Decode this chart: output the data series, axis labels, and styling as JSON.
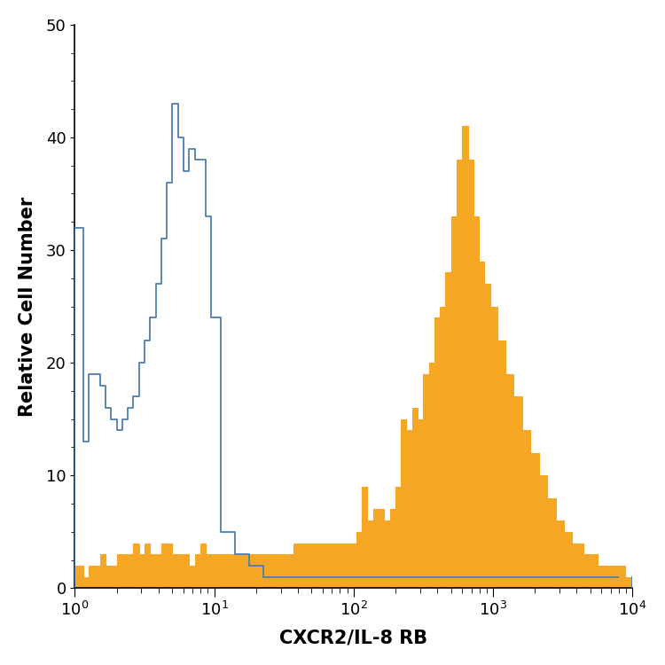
{
  "xlabel": "CXCR2/IL-8 RB",
  "ylabel": "Relative Cell Number",
  "xlim_log": [
    1,
    10000
  ],
  "ylim": [
    0,
    50
  ],
  "yticks": [
    0,
    10,
    20,
    30,
    40,
    50
  ],
  "xticks_major": [
    1,
    10,
    100,
    1000,
    10000
  ],
  "blue_color": "#4C7EAF",
  "orange_color": "#F5A623",
  "background_color": "#FFFFFF",
  "figsize": [
    7.5,
    7.5
  ],
  "dpi": 100,
  "blue_log_centers": [
    0.04,
    0.08,
    0.12,
    0.16,
    0.2,
    0.24,
    0.28,
    0.32,
    0.36,
    0.4,
    0.44,
    0.48,
    0.52,
    0.56,
    0.6,
    0.64,
    0.68,
    0.72,
    0.76,
    0.8,
    0.84,
    0.88,
    0.92,
    0.96,
    1.0,
    1.1,
    1.2,
    1.3,
    1.4,
    1.5,
    1.6,
    1.7,
    1.8,
    1.9,
    2.0,
    2.1,
    2.2,
    2.3,
    2.4,
    2.5,
    2.6,
    2.7,
    2.8,
    2.9,
    3.0,
    3.2,
    3.4,
    3.6,
    3.8,
    4.0
  ],
  "blue_vals": [
    32,
    13,
    19,
    19,
    18,
    16,
    15,
    14,
    15,
    16,
    17,
    20,
    22,
    24,
    27,
    31,
    36,
    43,
    40,
    37,
    39,
    38,
    38,
    33,
    24,
    5,
    3,
    2,
    1,
    1,
    1,
    1,
    1,
    1,
    1,
    1,
    1,
    1,
    1,
    1,
    1,
    1,
    1,
    1,
    1,
    1,
    1,
    1,
    1,
    1
  ],
  "orange_log_centers": [
    0.04,
    0.08,
    0.12,
    0.16,
    0.2,
    0.24,
    0.28,
    0.32,
    0.36,
    0.4,
    0.44,
    0.48,
    0.52,
    0.56,
    0.6,
    0.64,
    0.68,
    0.72,
    0.76,
    0.8,
    0.84,
    0.88,
    0.92,
    0.96,
    1.0,
    1.06,
    1.12,
    1.18,
    1.24,
    1.3,
    1.36,
    1.42,
    1.48,
    1.54,
    1.6,
    1.66,
    1.72,
    1.78,
    1.84,
    1.9,
    1.96,
    2.0,
    2.04,
    2.08,
    2.12,
    2.16,
    2.2,
    2.24,
    2.28,
    2.32,
    2.36,
    2.4,
    2.44,
    2.48,
    2.52,
    2.56,
    2.6,
    2.64,
    2.68,
    2.72,
    2.76,
    2.8,
    2.84,
    2.88,
    2.92,
    2.96,
    3.0,
    3.06,
    3.12,
    3.18,
    3.24,
    3.3,
    3.36,
    3.42,
    3.48,
    3.54,
    3.6,
    3.7,
    3.8,
    3.9,
    4.0
  ],
  "orange_vals": [
    2,
    1,
    2,
    2,
    3,
    2,
    2,
    3,
    3,
    3,
    4,
    3,
    4,
    3,
    3,
    4,
    4,
    3,
    3,
    3,
    2,
    3,
    4,
    3,
    3,
    3,
    3,
    3,
    3,
    3,
    3,
    3,
    3,
    3,
    4,
    4,
    4,
    4,
    4,
    4,
    4,
    4,
    5,
    9,
    6,
    7,
    7,
    6,
    7,
    9,
    15,
    14,
    16,
    15,
    19,
    20,
    24,
    25,
    28,
    33,
    38,
    41,
    38,
    33,
    29,
    27,
    25,
    22,
    19,
    17,
    14,
    12,
    10,
    8,
    6,
    5,
    4,
    3,
    2,
    2,
    1
  ]
}
